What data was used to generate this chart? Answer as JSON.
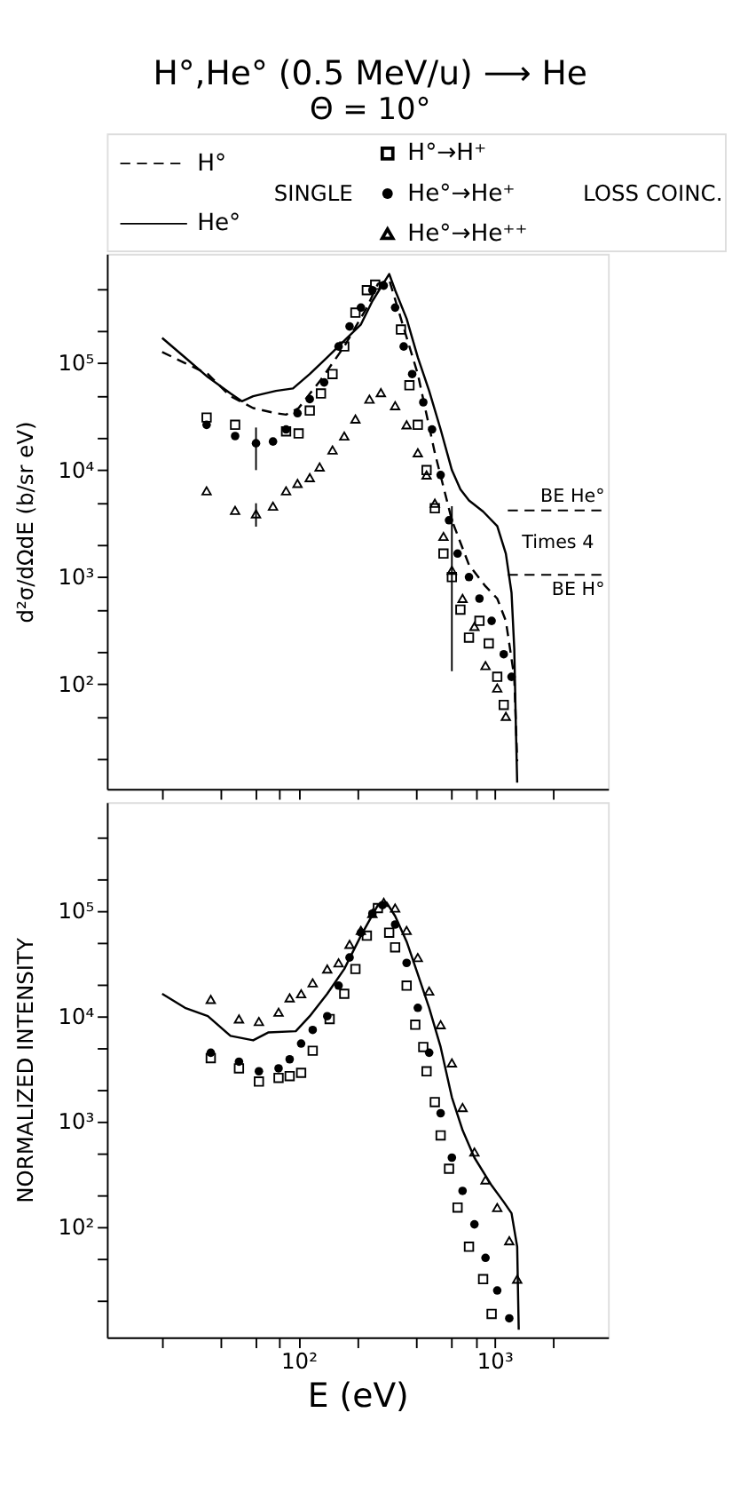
{
  "chart_data": [
    {
      "type": "scatter",
      "title": "H°,He° (0.5 MeV/u) ⟶ He",
      "subtitle": "Θ = 10°",
      "ylabel": "d²σ/dΩdE (b/sr eV)",
      "log": "xy",
      "grid": false,
      "legend": "top",
      "tick_labels": "y",
      "xlim": [
        10.5,
        3800
      ],
      "ylim": [
        10.5,
        1050000
      ],
      "xticks": [
        {
          "value": 20,
          "label": null
        },
        {
          "value": 40,
          "label": null
        },
        {
          "value": 60,
          "label": null
        },
        {
          "value": 80,
          "label": null
        },
        {
          "value": 100,
          "label": null
        },
        {
          "value": 200,
          "label": null
        },
        {
          "value": 400,
          "label": null
        },
        {
          "value": 600,
          "label": null
        },
        {
          "value": 800,
          "label": null
        },
        {
          "value": 1000,
          "label": null
        },
        {
          "value": 2000,
          "label": null
        }
      ],
      "yticks": [
        {
          "value": 20,
          "label": null
        },
        {
          "value": 50,
          "label": null
        },
        {
          "value": 100,
          "label": "10²"
        },
        {
          "value": 200,
          "label": null
        },
        {
          "value": 500,
          "label": null
        },
        {
          "value": 1000,
          "label": "10³"
        },
        {
          "value": 2000,
          "label": null
        },
        {
          "value": 5000,
          "label": null
        },
        {
          "value": 10000,
          "label": "10⁴"
        },
        {
          "value": 20000,
          "label": null
        },
        {
          "value": 50000,
          "label": null
        },
        {
          "value": 100000,
          "label": "10⁵"
        },
        {
          "value": 200000,
          "label": null
        },
        {
          "value": 500000,
          "label": null
        }
      ],
      "series": [
        {
          "name": "H°",
          "type": "line",
          "line_style": "dashed",
          "color": "#000000",
          "x": [
            20.1,
            26.3,
            34.4,
            44.9,
            58.6,
            76.6,
            86.3,
            100,
            130,
            171,
            223,
            254,
            290,
            333,
            406,
            496,
            606,
            741,
            900,
            1033,
            1143,
            1262,
            1306
          ],
          "values": [
            127000,
            100000,
            79000,
            49000,
            38000,
            34000,
            33000,
            38000,
            70000,
            143000,
            330000,
            550000,
            600000,
            260000,
            79000,
            14500,
            3400,
            1300,
            820,
            630,
            390,
            116,
            19
          ]
        },
        {
          "name": "He°",
          "type": "line",
          "line_style": "solid",
          "color": "#000000",
          "x": [
            20.1,
            26.3,
            34.4,
            44.9,
            51.3,
            58.6,
            76.6,
            93.6,
            114,
            140,
            171,
            208,
            238,
            263,
            290,
            311,
            356,
            406,
            464,
            531,
            606,
            670,
            741,
            875,
            1033,
            1143,
            1222,
            1262,
            1288,
            1306
          ],
          "values": [
            172000,
            113000,
            74000,
            52000,
            44000,
            49000,
            55000,
            58000,
            79000,
            113000,
            162000,
            230000,
            380000,
            510000,
            680000,
            480000,
            260000,
            113000,
            55000,
            24000,
            10000,
            6600,
            5200,
            4100,
            3000,
            1660,
            713,
            214,
            35,
            12
          ]
        },
        {
          "name": "H°→H⁺",
          "marker": "square",
          "color": "#000000",
          "x": [
            33.9,
            47.4,
            86.3,
            100,
            114,
            130,
            149,
            171,
            195,
            223,
            246,
            333,
            368,
            406,
            450,
            496,
            549,
            606,
            670,
            741,
            838,
            935,
            1033,
            1115
          ],
          "values": [
            31000,
            26500,
            23000,
            22000,
            36000,
            52000,
            79000,
            143000,
            296000,
            480000,
            540000,
            206000,
            62000,
            26500,
            10000,
            4400,
            1660,
            1000,
            497,
            272,
            390,
            240,
            117,
            64
          ],
          "errors": [
            null,
            null,
            null,
            null,
            null,
            null,
            null,
            null,
            null,
            null,
            null,
            null,
            null,
            null,
            null,
            null,
            null,
            [
              132,
              4600
            ],
            null,
            null,
            null,
            null,
            null,
            null
          ]
        },
        {
          "name": "He°→He⁺",
          "marker": "circle",
          "color": "#000000",
          "x": [
            33.9,
            47.4,
            60.6,
            74,
            86.3,
            98.7,
            114,
            135,
            160,
            182,
            208,
            238,
            272,
            311,
            344,
            380,
            433,
            480,
            531,
            586,
            648,
            741,
            838,
            967,
            1115,
            1222
          ],
          "values": [
            26500,
            20800,
            17800,
            18500,
            24000,
            34000,
            46000,
            66000,
            143000,
            220000,
            330000,
            480000,
            530000,
            330000,
            143000,
            79000,
            43000,
            24000,
            9000,
            3400,
            1660,
            1000,
            630,
            390,
            190,
            117
          ],
          "errors": [
            null,
            null,
            [
              10000,
              25000
            ],
            null,
            null,
            null,
            null,
            null,
            null,
            null,
            null,
            null,
            null,
            null,
            null,
            null,
            null,
            null,
            null,
            null,
            null,
            null,
            null,
            null,
            null,
            null
          ]
        },
        {
          "name": "He°→He⁺⁺",
          "marker": "triangle",
          "color": "#000000",
          "x": [
            33.9,
            47.4,
            60.6,
            74,
            86.3,
            98.7,
            114,
            128,
            149,
            171,
            195,
            230,
            263,
            311,
            356,
            406,
            450,
            496,
            549,
            606,
            687,
            790,
            900,
            1033,
            1143
          ],
          "values": [
            6400,
            4200,
            3900,
            4600,
            6400,
            7500,
            8500,
            10700,
            15400,
            20800,
            30000,
            46000,
            53000,
            40000,
            26500,
            14500,
            9000,
            4900,
            2400,
            1160,
            632,
            346,
            149,
            92,
            50
          ],
          "errors": [
            null,
            null,
            [
              2960,
              4900
            ],
            null,
            null,
            null,
            null,
            null,
            null,
            null,
            null,
            null,
            null,
            null,
            null,
            null,
            null,
            null,
            null,
            null,
            null,
            null,
            null,
            null,
            null
          ]
        }
      ],
      "ref_lines": [
        {
          "axis": "y",
          "value": 4200,
          "label": "BE He°",
          "line_style": "dashed"
        },
        {
          "axis": "y",
          "value": 1050,
          "label": "BE H°",
          "line_style": "dashed"
        }
      ],
      "annotations": [
        "SINGLE",
        "LOSS COINC.",
        "Times 4"
      ]
    },
    {
      "type": "scatter",
      "xlabel": "E (eV)",
      "ylabel": "NORMALIZED INTENSITY",
      "log": "xy",
      "grid": false,
      "xlim": [
        10.5,
        3800
      ],
      "ylim": [
        9,
        1070000
      ],
      "xticks": [
        {
          "value": 20,
          "label": null
        },
        {
          "value": 40,
          "label": null
        },
        {
          "value": 60,
          "label": null
        },
        {
          "value": 80,
          "label": null
        },
        {
          "value": 100,
          "label": "10²"
        },
        {
          "value": 200,
          "label": null
        },
        {
          "value": 400,
          "label": null
        },
        {
          "value": 600,
          "label": null
        },
        {
          "value": 800,
          "label": null
        },
        {
          "value": 1000,
          "label": "10³"
        },
        {
          "value": 2000,
          "label": null
        }
      ],
      "yticks": [
        {
          "value": 20,
          "label": null
        },
        {
          "value": 50,
          "label": null
        },
        {
          "value": 100,
          "label": "10²"
        },
        {
          "value": 200,
          "label": null
        },
        {
          "value": 500,
          "label": null
        },
        {
          "value": 1000,
          "label": "10³"
        },
        {
          "value": 2000,
          "label": null
        },
        {
          "value": 5000,
          "label": null
        },
        {
          "value": 10000,
          "label": "10⁴"
        },
        {
          "value": 20000,
          "label": null
        },
        {
          "value": 50000,
          "label": null
        },
        {
          "value": 100000,
          "label": "10⁵"
        },
        {
          "value": 200000,
          "label": null
        },
        {
          "value": 500000,
          "label": null
        }
      ],
      "series": [
        {
          "type": "line",
          "line_style": "solid",
          "color": "#000000",
          "x": [
            20.1,
            26.3,
            34.4,
            44.9,
            58.6,
            69.9,
            96.7,
            114,
            140,
            171,
            208,
            254,
            281,
            311,
            356,
            406,
            464,
            531,
            606,
            687,
            790,
            967,
            1115,
            1222,
            1306,
            1330
          ],
          "values": [
            16300,
            12000,
            10000,
            6500,
            5900,
            7000,
            7200,
            10000,
            16300,
            28000,
            58000,
            113000,
            120000,
            89000,
            51000,
            25000,
            12000,
            5100,
            1700,
            830,
            455,
            248,
            173,
            135,
            65,
            10.6
          ]
        },
        {
          "marker": "square",
          "color": "#000000",
          "x": [
            35.6,
            49.6,
            62.7,
            79,
            90,
            103,
            118,
            144,
            171,
            195,
            223,
            254,
            290,
            311,
            356,
            394,
            433,
            450,
            496,
            531,
            586,
            648,
            741,
            875,
            967
          ],
          "values": [
            4000,
            3200,
            2400,
            2600,
            2700,
            2900,
            4700,
            9400,
            16300,
            28000,
            58000,
            106000,
            62000,
            45000,
            19500,
            8300,
            5100,
            3000,
            1530,
            740,
            357,
            153,
            65,
            32,
            15
          ]
        },
        {
          "marker": "circle",
          "color": "#000000",
          "x": [
            35.6,
            49.6,
            62.7,
            79,
            90,
            103,
            118,
            140,
            160,
            182,
            208,
            238,
            268,
            311,
            356,
            406,
            464,
            531,
            606,
            687,
            790,
            900,
            1033,
            1190
          ],
          "values": [
            4500,
            3700,
            3000,
            3200,
            3900,
            5500,
            7400,
            10000,
            19500,
            36000,
            62000,
            94000,
            113000,
            74000,
            32000,
            12000,
            4500,
            1200,
            455,
            220,
            106,
            51,
            25,
            13.6
          ]
        },
        {
          "marker": "triangle",
          "color": "#000000",
          "x": [
            35.6,
            49.6,
            62.7,
            79,
            90,
            103,
            118,
            140,
            160,
            182,
            208,
            238,
            272,
            311,
            356,
            406,
            464,
            531,
            606,
            687,
            790,
            900,
            1033,
            1190,
            1306
          ],
          "values": [
            14400,
            9400,
            8900,
            10900,
            14900,
            16300,
            20700,
            28000,
            32000,
            48000,
            65000,
            94000,
            120000,
            106000,
            65000,
            36000,
            17300,
            8300,
            3600,
            1360,
            514,
            280,
            153,
            74,
            32
          ]
        }
      ]
    }
  ]
}
